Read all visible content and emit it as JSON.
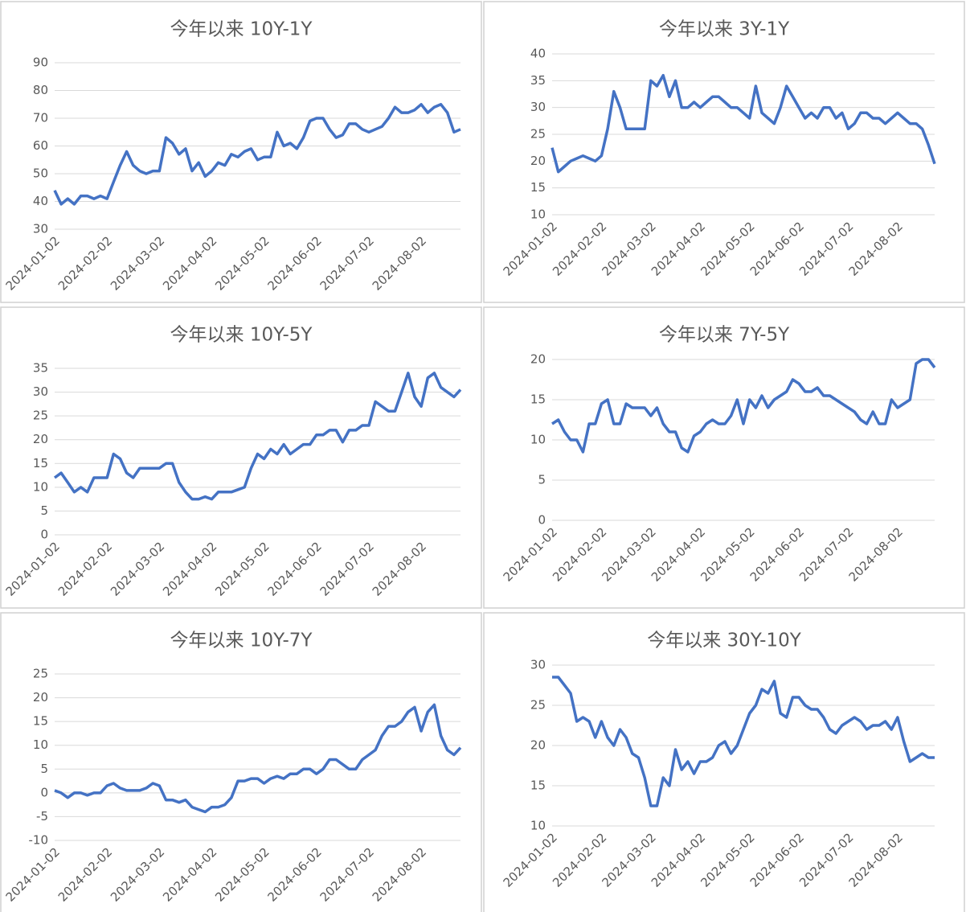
{
  "chart_data": [
    {
      "type": "line",
      "title": "今年以来 10Y-1Y",
      "categories": [
        "2024-01-02",
        null,
        null,
        null,
        null,
        null,
        null,
        null,
        "2024-02-02",
        null,
        null,
        null,
        null,
        null,
        null,
        null,
        "2024-03-02",
        null,
        null,
        null,
        null,
        null,
        null,
        null,
        "2024-04-02",
        null,
        null,
        null,
        null,
        null,
        null,
        null,
        "2024-05-02",
        null,
        null,
        null,
        null,
        null,
        null,
        null,
        "2024-06-02",
        null,
        null,
        null,
        null,
        null,
        null,
        null,
        "2024-07-02",
        null,
        null,
        null,
        null,
        null,
        null,
        null,
        "2024-08-02",
        null,
        null,
        null,
        null,
        null,
        null
      ],
      "series": [
        {
          "name": "10Y-1Y",
          "color": "#4472c4",
          "values": [
            44,
            39,
            41,
            39,
            42,
            42,
            41,
            42,
            41,
            47,
            53,
            58,
            53,
            51,
            50,
            51,
            51,
            63,
            61,
            57,
            59,
            51,
            54,
            49,
            51,
            54,
            53,
            57,
            56,
            58,
            59,
            55,
            56,
            56,
            65,
            60,
            61,
            59,
            63,
            69,
            70,
            70,
            66,
            63,
            64,
            68,
            68,
            66,
            65,
            66,
            67,
            70,
            74,
            72,
            72,
            73,
            75,
            72,
            74,
            75,
            72,
            65,
            66
          ]
        }
      ],
      "ylim": [
        30,
        90
      ],
      "yticks": [
        30,
        40,
        50,
        60,
        70,
        80,
        90
      ],
      "grid": true
    },
    {
      "type": "line",
      "title": "今年以来 3Y-1Y",
      "categories": [
        "2024-01-02",
        null,
        null,
        null,
        null,
        null,
        null,
        null,
        "2024-02-02",
        null,
        null,
        null,
        null,
        null,
        null,
        null,
        "2024-03-02",
        null,
        null,
        null,
        null,
        null,
        null,
        null,
        "2024-04-02",
        null,
        null,
        null,
        null,
        null,
        null,
        null,
        "2024-05-02",
        null,
        null,
        null,
        null,
        null,
        null,
        null,
        "2024-06-02",
        null,
        null,
        null,
        null,
        null,
        null,
        null,
        "2024-07-02",
        null,
        null,
        null,
        null,
        null,
        null,
        null,
        "2024-08-02",
        null,
        null,
        null,
        null,
        null,
        null
      ],
      "series": [
        {
          "name": "3Y-1Y",
          "color": "#4472c4",
          "values": [
            22.5,
            18,
            19,
            20,
            20.5,
            21,
            20.5,
            20,
            21,
            26,
            33,
            30,
            26,
            26,
            26,
            26,
            35,
            34,
            36,
            32,
            35,
            30,
            30,
            31,
            30,
            31,
            32,
            32,
            31,
            30,
            30,
            29,
            28,
            34,
            29,
            28,
            27,
            30,
            34,
            32,
            30,
            28,
            29,
            28,
            30,
            30,
            28,
            29,
            26,
            27,
            29,
            29,
            28,
            28,
            27,
            28,
            29,
            28,
            27,
            27,
            26,
            23,
            19.5
          ]
        }
      ],
      "ylim": [
        10,
        40
      ],
      "yticks": [
        10,
        15,
        20,
        25,
        30,
        35,
        40
      ],
      "grid": true
    },
    {
      "type": "line",
      "title": "今年以来 10Y-5Y",
      "categories": [
        "2024-01-02",
        null,
        null,
        null,
        null,
        null,
        null,
        null,
        "2024-02-02",
        null,
        null,
        null,
        null,
        null,
        null,
        null,
        "2024-03-02",
        null,
        null,
        null,
        null,
        null,
        null,
        null,
        "2024-04-02",
        null,
        null,
        null,
        null,
        null,
        null,
        null,
        "2024-05-02",
        null,
        null,
        null,
        null,
        null,
        null,
        null,
        "2024-06-02",
        null,
        null,
        null,
        null,
        null,
        null,
        null,
        "2024-07-02",
        null,
        null,
        null,
        null,
        null,
        null,
        null,
        "2024-08-02",
        null,
        null,
        null,
        null,
        null,
        null
      ],
      "series": [
        {
          "name": "10Y-5Y",
          "color": "#4472c4",
          "values": [
            12,
            13,
            11,
            9,
            10,
            9,
            12,
            12,
            12,
            17,
            16,
            13,
            12,
            14,
            14,
            14,
            14,
            15,
            15,
            11,
            9,
            7.5,
            7.5,
            8,
            7.5,
            9,
            9,
            9,
            9.5,
            10,
            14,
            17,
            16,
            18,
            17,
            19,
            17,
            18,
            19,
            19,
            21,
            21,
            22,
            22,
            19.5,
            22,
            22,
            23,
            23,
            28,
            27,
            26,
            26,
            30,
            34,
            29,
            27,
            33,
            34,
            31,
            30,
            29,
            30.5
          ]
        }
      ],
      "ylim": [
        0,
        35
      ],
      "yticks": [
        0,
        5,
        10,
        15,
        20,
        25,
        30,
        35
      ],
      "grid": true
    },
    {
      "type": "line",
      "title": "今年以来 7Y-5Y",
      "categories": [
        "2024-01-02",
        null,
        null,
        null,
        null,
        null,
        null,
        null,
        "2024-02-02",
        null,
        null,
        null,
        null,
        null,
        null,
        null,
        "2024-03-02",
        null,
        null,
        null,
        null,
        null,
        null,
        null,
        "2024-04-02",
        null,
        null,
        null,
        null,
        null,
        null,
        null,
        "2024-05-02",
        null,
        null,
        null,
        null,
        null,
        null,
        null,
        "2024-06-02",
        null,
        null,
        null,
        null,
        null,
        null,
        null,
        "2024-07-02",
        null,
        null,
        null,
        null,
        null,
        null,
        null,
        "2024-08-02",
        null,
        null,
        null,
        null,
        null,
        null
      ],
      "series": [
        {
          "name": "7Y-5Y",
          "color": "#4472c4",
          "values": [
            12,
            12.5,
            11,
            10,
            10,
            8.5,
            12,
            12,
            14.5,
            15,
            12,
            12,
            14.5,
            14,
            14,
            14,
            13,
            14,
            12,
            11,
            11,
            9,
            8.5,
            10.5,
            11,
            12,
            12.5,
            12,
            12,
            13,
            15,
            12,
            15,
            14,
            15.5,
            14,
            15,
            15.5,
            16,
            17.5,
            17,
            16,
            16,
            16.5,
            15.5,
            15.5,
            15,
            14.5,
            14,
            13.5,
            12.5,
            12,
            13.5,
            12,
            12,
            15,
            14,
            14.5,
            15,
            19.5,
            20,
            20,
            19
          ]
        }
      ],
      "ylim": [
        0,
        20
      ],
      "yticks": [
        0,
        5,
        10,
        15,
        20
      ],
      "grid": true
    },
    {
      "type": "line",
      "title": "今年以来 10Y-7Y",
      "categories": [
        "2024-01-02",
        null,
        null,
        null,
        null,
        null,
        null,
        null,
        "2024-02-02",
        null,
        null,
        null,
        null,
        null,
        null,
        null,
        "2024-03-02",
        null,
        null,
        null,
        null,
        null,
        null,
        null,
        "2024-04-02",
        null,
        null,
        null,
        null,
        null,
        null,
        null,
        "2024-05-02",
        null,
        null,
        null,
        null,
        null,
        null,
        null,
        "2024-06-02",
        null,
        null,
        null,
        null,
        null,
        null,
        null,
        "2024-07-02",
        null,
        null,
        null,
        null,
        null,
        null,
        null,
        "2024-08-02",
        null,
        null,
        null,
        null,
        null,
        null
      ],
      "series": [
        {
          "name": "10Y-7Y",
          "color": "#4472c4",
          "values": [
            0.5,
            0,
            -1,
            0,
            0,
            -0.5,
            0,
            0,
            1.5,
            2,
            1,
            0.5,
            0.5,
            0.5,
            1,
            2,
            1.5,
            -1.5,
            -1.5,
            -2,
            -1.5,
            -3,
            -3.5,
            -4,
            -3,
            -3,
            -2.5,
            -1,
            2.5,
            2.5,
            3,
            3,
            2,
            3,
            3.5,
            3,
            4,
            4,
            5,
            5,
            4,
            5,
            7,
            7,
            6,
            5,
            5,
            7,
            8,
            9,
            12,
            14,
            14,
            15,
            17,
            18,
            13,
            17,
            18.5,
            12,
            9,
            8,
            9.5
          ]
        }
      ],
      "ylim": [
        -10,
        25
      ],
      "yticks": [
        -10,
        -5,
        0,
        5,
        10,
        15,
        20,
        25
      ],
      "grid": true
    },
    {
      "type": "line",
      "title": "今年以来 30Y-10Y",
      "categories": [
        "2024-01-02",
        null,
        null,
        null,
        null,
        null,
        null,
        null,
        "2024-02-02",
        null,
        null,
        null,
        null,
        null,
        null,
        null,
        "2024-03-02",
        null,
        null,
        null,
        null,
        null,
        null,
        null,
        "2024-04-02",
        null,
        null,
        null,
        null,
        null,
        null,
        null,
        "2024-05-02",
        null,
        null,
        null,
        null,
        null,
        null,
        null,
        "2024-06-02",
        null,
        null,
        null,
        null,
        null,
        null,
        null,
        "2024-07-02",
        null,
        null,
        null,
        null,
        null,
        null,
        null,
        "2024-08-02",
        null,
        null,
        null,
        null,
        null,
        null
      ],
      "series": [
        {
          "name": "30Y-10Y",
          "color": "#4472c4",
          "values": [
            28.5,
            28.5,
            27.5,
            26.5,
            23,
            23.5,
            23,
            21,
            23,
            21,
            20,
            22,
            21,
            19,
            18.5,
            16,
            12.5,
            12.5,
            16,
            15,
            19.5,
            17,
            18,
            16.5,
            18,
            18,
            18.5,
            20,
            20.5,
            19,
            20,
            22,
            24,
            25,
            27,
            26.5,
            28,
            24,
            23.5,
            26,
            26,
            25,
            24.5,
            24.5,
            23.5,
            22,
            21.5,
            22.5,
            23,
            23.5,
            23,
            22,
            22.5,
            22.5,
            23,
            22,
            23.5,
            20.5,
            18,
            18.5,
            19,
            18.5,
            18.5
          ]
        }
      ],
      "ylim": [
        10,
        30
      ],
      "yticks": [
        10,
        15,
        20,
        25,
        30
      ],
      "grid": true
    }
  ]
}
